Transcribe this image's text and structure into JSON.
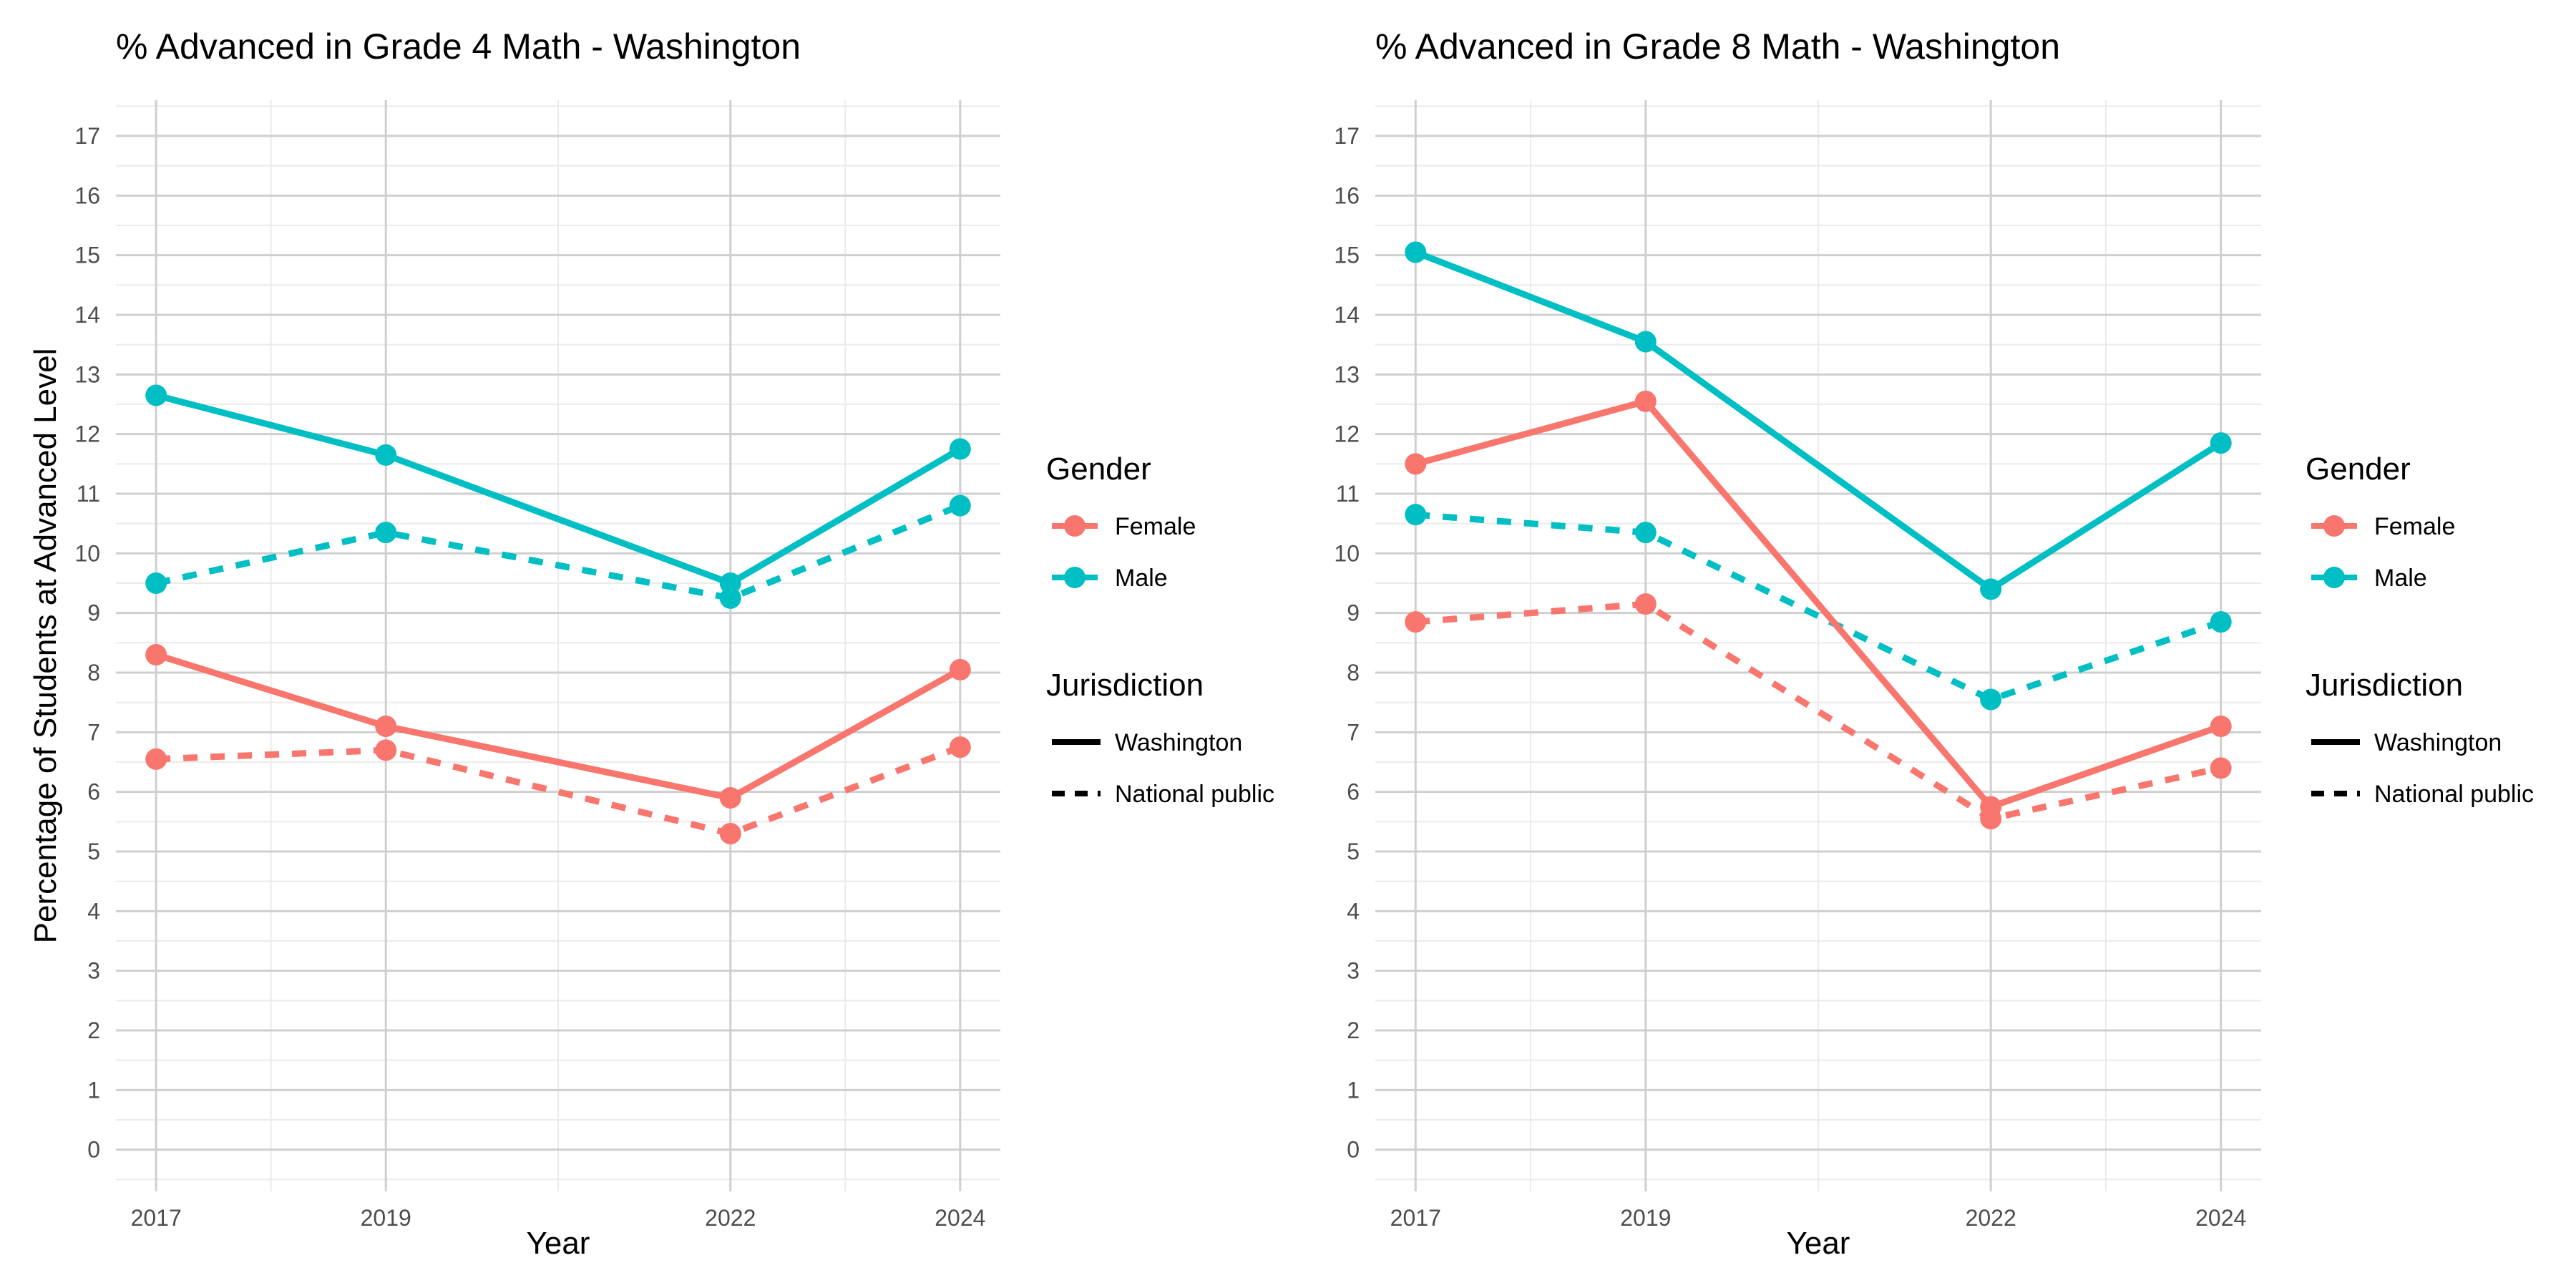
{
  "chart_data": [
    {
      "type": "line",
      "title": "% Advanced in Grade 4 Math - Washington",
      "xlabel": "Year",
      "ylabel": "Percentage of Students at Advanced Level",
      "x": [
        2017,
        2019,
        2022,
        2024
      ],
      "xlim": [
        2016.65,
        2024.35
      ],
      "ylim": [
        -0.7,
        17.6
      ],
      "yticks": [
        0,
        1,
        2,
        3,
        4,
        5,
        6,
        7,
        8,
        9,
        10,
        11,
        12,
        13,
        14,
        15,
        16,
        17
      ],
      "series": [
        {
          "name": "Female - Washington",
          "gender": "Female",
          "jurisdiction": "Washington",
          "values": [
            8.3,
            7.1,
            5.9,
            8.05
          ]
        },
        {
          "name": "Female - National public",
          "gender": "Female",
          "jurisdiction": "National public",
          "values": [
            6.55,
            6.7,
            5.3,
            6.75
          ]
        },
        {
          "name": "Male - Washington",
          "gender": "Male",
          "jurisdiction": "Washington",
          "values": [
            12.65,
            11.65,
            9.5,
            11.75
          ]
        },
        {
          "name": "Male - National public",
          "gender": "Male",
          "jurisdiction": "National public",
          "values": [
            9.5,
            10.35,
            9.25,
            10.8
          ]
        }
      ]
    },
    {
      "type": "line",
      "title": "% Advanced in Grade 8 Math - Washington",
      "xlabel": "Year",
      "ylabel": "",
      "x": [
        2017,
        2019,
        2022,
        2024
      ],
      "xlim": [
        2016.65,
        2024.35
      ],
      "ylim": [
        -0.7,
        17.6
      ],
      "yticks": [
        0,
        1,
        2,
        3,
        4,
        5,
        6,
        7,
        8,
        9,
        10,
        11,
        12,
        13,
        14,
        15,
        16,
        17
      ],
      "series": [
        {
          "name": "Female - Washington",
          "gender": "Female",
          "jurisdiction": "Washington",
          "values": [
            11.5,
            12.55,
            5.75,
            7.1
          ]
        },
        {
          "name": "Female - National public",
          "gender": "Female",
          "jurisdiction": "National public",
          "values": [
            8.85,
            9.15,
            5.55,
            6.4
          ]
        },
        {
          "name": "Male - Washington",
          "gender": "Male",
          "jurisdiction": "Washington",
          "values": [
            15.05,
            13.55,
            9.4,
            11.85
          ]
        },
        {
          "name": "Male - National public",
          "gender": "Male",
          "jurisdiction": "National public",
          "values": [
            10.65,
            10.35,
            7.55,
            8.85
          ]
        }
      ]
    }
  ],
  "legend": {
    "gender_title": "Gender",
    "gender_items": [
      {
        "label": "Female",
        "color": "#F8766D"
      },
      {
        "label": "Male",
        "color": "#00BFC4"
      }
    ],
    "jurisdiction_title": "Jurisdiction",
    "jurisdiction_items": [
      {
        "label": "Washington",
        "style": "solid"
      },
      {
        "label": "National public",
        "style": "dashed"
      }
    ]
  },
  "colors": {
    "Female": "#F8766D",
    "Male": "#00BFC4"
  }
}
